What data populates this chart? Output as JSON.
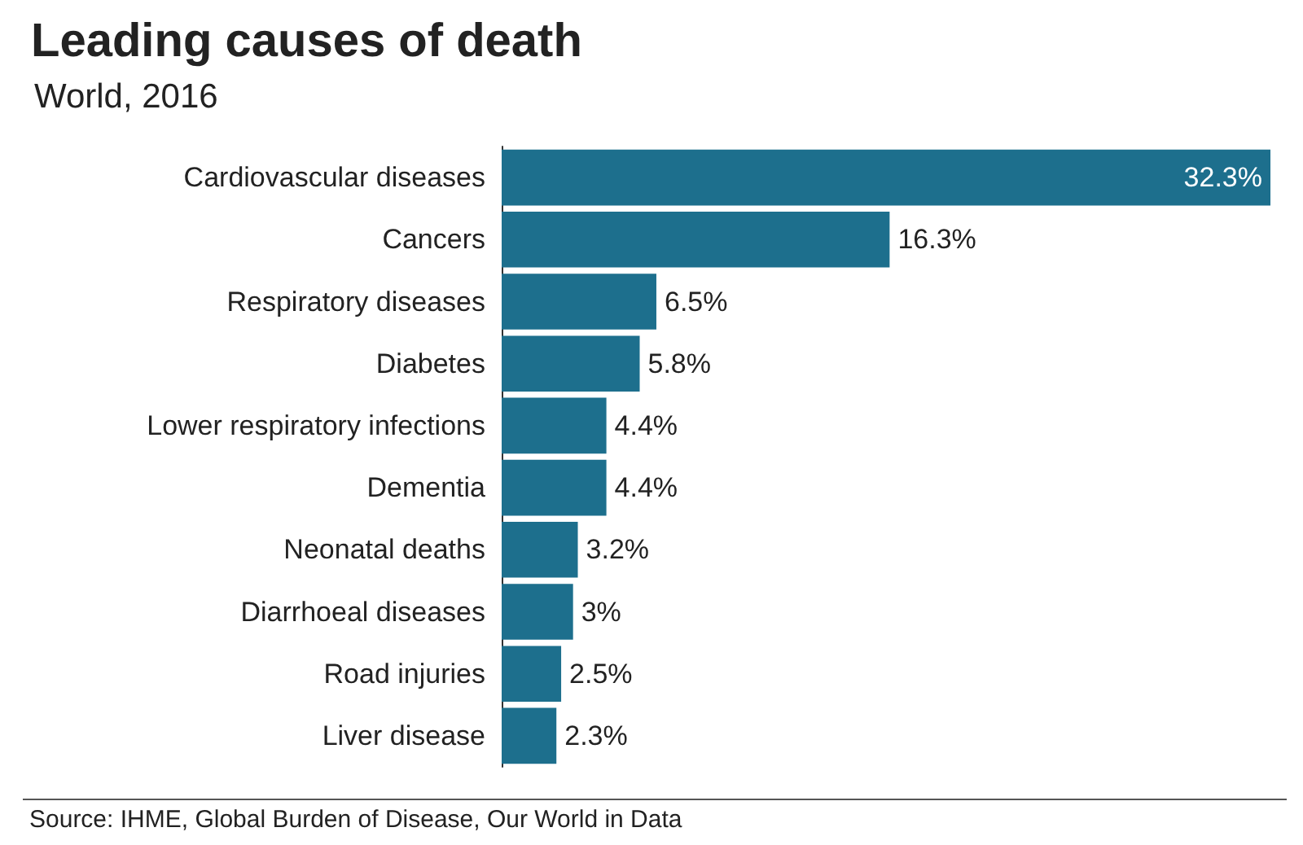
{
  "chart_data": {
    "type": "bar",
    "orientation": "horizontal",
    "title": "Leading causes of death",
    "subtitle": "World, 2016",
    "categories": [
      "Cardiovascular diseases",
      "Cancers",
      "Respiratory diseases",
      "Diabetes",
      "Lower respiratory infections",
      "Dementia",
      "Neonatal deaths",
      "Diarrhoeal diseases",
      "Road injuries",
      "Liver disease"
    ],
    "values": [
      32.3,
      16.3,
      6.5,
      5.8,
      4.4,
      4.4,
      3.2,
      3,
      2.5,
      2.3
    ],
    "value_labels": [
      "32.3%",
      "16.3%",
      "6.5%",
      "5.8%",
      "4.4%",
      "4.4%",
      "3.2%",
      "3%",
      "2.5%",
      "2.3%"
    ],
    "color": "#1d6f8d",
    "annotations": [
      "Source: IHME, Global Burden of Disease, Our World in Data"
    ]
  }
}
